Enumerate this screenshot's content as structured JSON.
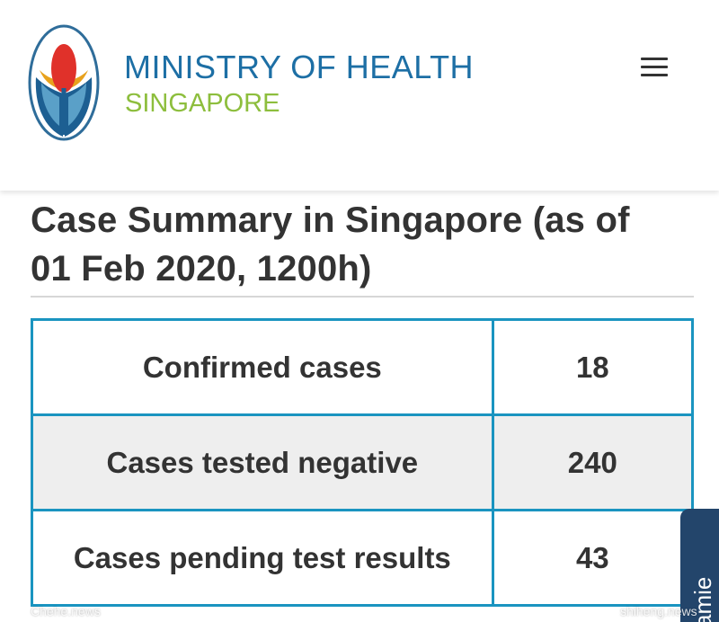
{
  "header": {
    "logo_icon": "ministry-of-health-emblem",
    "title": "MINISTRY OF HEALTH",
    "subtitle": "SINGAPORE",
    "menu_icon": "hamburger-menu-icon",
    "title_color": "#1d6fa5",
    "subtitle_color": "#8dbe3d"
  },
  "main": {
    "title": "Case Summary in Singapore (as of 01 Feb 2020, 1200h)"
  },
  "table": {
    "border_color": "#1a94c0",
    "rows": [
      {
        "label": "Confirmed cases",
        "value": "18"
      },
      {
        "label": "Cases tested negative",
        "value": "240"
      },
      {
        "label": "Cases pending test results",
        "value": "43"
      }
    ]
  },
  "side_tab": {
    "label": "amie",
    "color": "#23456b"
  },
  "watermarks": {
    "left": "Chehe.news",
    "right": "shiheng.news"
  }
}
